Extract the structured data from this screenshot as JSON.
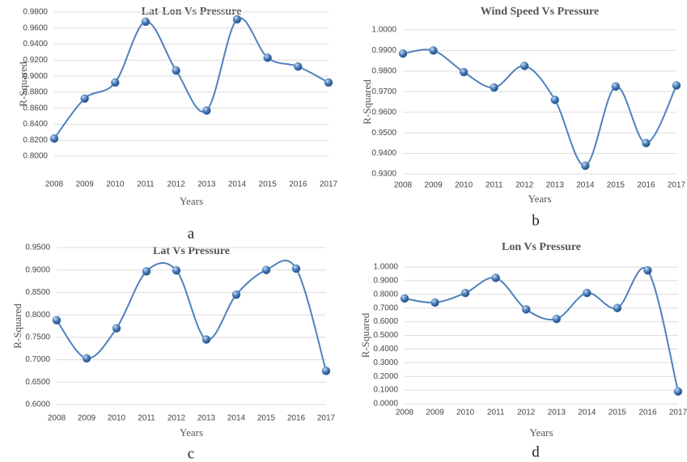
{
  "chart_data": [
    {
      "type": "line",
      "title": "Lat-Lon Vs Pressure",
      "caption": "a",
      "x_label": "Years",
      "y_label": "R-Squared",
      "categories": [
        "2008",
        "2009",
        "2010",
        "2011",
        "2012",
        "2013",
        "2014",
        "2015",
        "2016",
        "2017"
      ],
      "values": [
        0.822,
        0.872,
        0.892,
        0.968,
        0.907,
        0.857,
        0.971,
        0.923,
        0.912,
        0.892
      ],
      "color": "#4f81bd",
      "grid": true,
      "ylim": [
        0.8,
        0.98
      ],
      "yticks": [
        {
          "value": 0.8,
          "label": "0.8000"
        },
        {
          "value": 0.82,
          "label": "0.8200"
        },
        {
          "value": 0.84,
          "label": "0.8400"
        },
        {
          "value": 0.86,
          "label": "0.8600"
        },
        {
          "value": 0.88,
          "label": "0.8800"
        },
        {
          "value": 0.9,
          "label": "0.9000"
        },
        {
          "value": 0.92,
          "label": "0.9200"
        },
        {
          "value": 0.94,
          "label": "0.9400"
        },
        {
          "value": 0.96,
          "label": "0.9600"
        },
        {
          "value": 0.98,
          "label": "0.9800"
        }
      ]
    },
    {
      "type": "line",
      "title": "Wind Speed Vs Pressure",
      "caption": "b",
      "x_label": "Years",
      "y_label": "R-Squared",
      "categories": [
        "2008",
        "2009",
        "2010",
        "2011",
        "2012",
        "2013",
        "2014",
        "2015",
        "2016",
        "2017"
      ],
      "values": [
        0.9885,
        0.99,
        0.9795,
        0.972,
        0.9825,
        0.966,
        0.934,
        0.9725,
        0.945,
        0.973
      ],
      "color": "#4f81bd",
      "grid": true,
      "ylim": [
        0.93,
        1.0
      ],
      "yticks": [
        {
          "value": 0.93,
          "label": "0.9300"
        },
        {
          "value": 0.94,
          "label": "0.9400"
        },
        {
          "value": 0.95,
          "label": "0.9500"
        },
        {
          "value": 0.96,
          "label": "0.9600"
        },
        {
          "value": 0.97,
          "label": "0.9700"
        },
        {
          "value": 0.98,
          "label": "0.9800"
        },
        {
          "value": 0.99,
          "label": "0.9900"
        },
        {
          "value": 1.0,
          "label": "1.0000"
        }
      ]
    },
    {
      "type": "line",
      "title": "Lat Vs Pressure",
      "caption": "c",
      "x_label": "Years",
      "y_label": "R-Squared",
      "categories": [
        "2008",
        "2009",
        "2010",
        "2011",
        "2012",
        "2013",
        "2014",
        "2015",
        "2016",
        "2017"
      ],
      "values": [
        0.788,
        0.703,
        0.77,
        0.897,
        0.899,
        0.745,
        0.845,
        0.9,
        0.903,
        0.675
      ],
      "color": "#4f81bd",
      "grid": true,
      "ylim": [
        0.6,
        0.95
      ],
      "yticks": [
        {
          "value": 0.6,
          "label": "0.6000"
        },
        {
          "value": 0.65,
          "label": "0.6500"
        },
        {
          "value": 0.7,
          "label": "0.7000"
        },
        {
          "value": 0.75,
          "label": "0.7500"
        },
        {
          "value": 0.8,
          "label": "0.8000"
        },
        {
          "value": 0.85,
          "label": "0.8500"
        },
        {
          "value": 0.9,
          "label": "0.9000"
        },
        {
          "value": 0.95,
          "label": "0.9500"
        }
      ]
    },
    {
      "type": "line",
      "title": "Lon Vs Pressure",
      "caption": "d",
      "x_label": "Years",
      "y_label": "R-Squared",
      "categories": [
        "2008",
        "2009",
        "2010",
        "2011",
        "2012",
        "2013",
        "2014",
        "2015",
        "2016",
        "2017"
      ],
      "values": [
        0.77,
        0.74,
        0.81,
        0.92,
        0.69,
        0.62,
        0.81,
        0.7,
        0.975,
        0.09
      ],
      "color": "#4f81bd",
      "grid": true,
      "ylim": [
        0,
        1.0
      ],
      "yticks": [
        {
          "value": 0,
          "label": "0.0000"
        },
        {
          "value": 0.1,
          "label": "0.1000"
        },
        {
          "value": 0.2,
          "label": "0.2000"
        },
        {
          "value": 0.3,
          "label": "0.3000"
        },
        {
          "value": 0.4,
          "label": "0.4000"
        },
        {
          "value": 0.5,
          "label": "0.5000"
        },
        {
          "value": 0.6,
          "label": "0.6000"
        },
        {
          "value": 0.7,
          "label": "0.7000"
        },
        {
          "value": 0.8,
          "label": "0.8000"
        },
        {
          "value": 0.9,
          "label": "0.9000"
        },
        {
          "value": 1.0,
          "label": "1.0000"
        }
      ]
    }
  ]
}
